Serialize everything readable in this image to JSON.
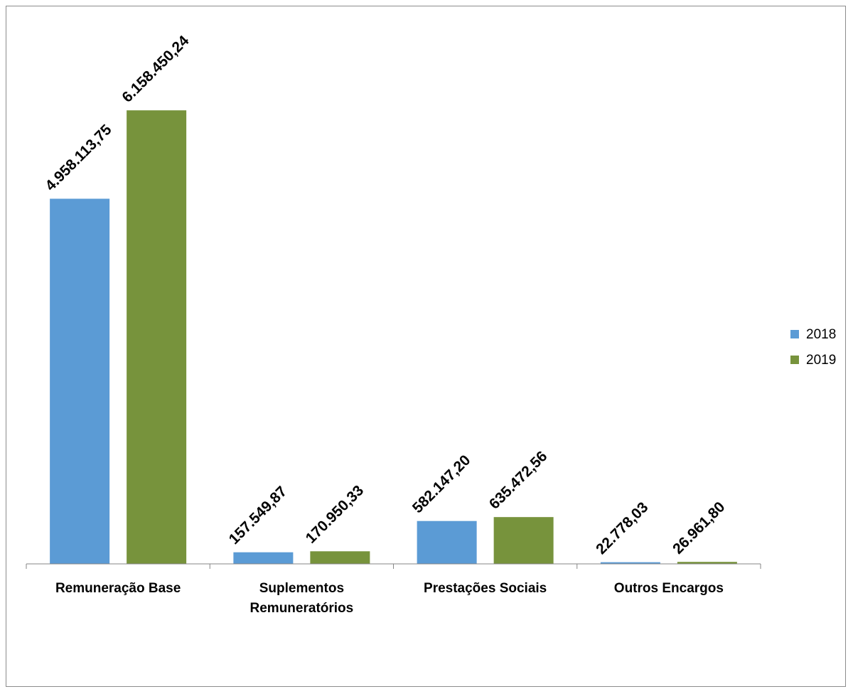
{
  "chart_data": {
    "type": "bar",
    "categories": [
      [
        "Remuneração Base"
      ],
      [
        "Suplementos",
        "Remuneratórios"
      ],
      [
        "Prestações Sociais"
      ],
      [
        "Outros Encargos"
      ]
    ],
    "series": [
      {
        "name": "2018",
        "color": "#5b9bd5",
        "values": [
          4958113.75,
          157549.87,
          582147.2,
          22778.03
        ],
        "labels": [
          "4.958.113,75",
          "157.549,87",
          "582.147,20",
          "22.778,03"
        ]
      },
      {
        "name": "2019",
        "color": "#77933c",
        "values": [
          6158450.24,
          170950.33,
          635472.56,
          26961.8
        ],
        "labels": [
          "6.158.450,24",
          "170.950,33",
          "635.472,56",
          "26.961,80"
        ]
      }
    ],
    "title": "",
    "xlabel": "",
    "ylabel": "",
    "ylim": [
      0,
      7000000
    ],
    "grid": false,
    "legend_position": "right"
  }
}
